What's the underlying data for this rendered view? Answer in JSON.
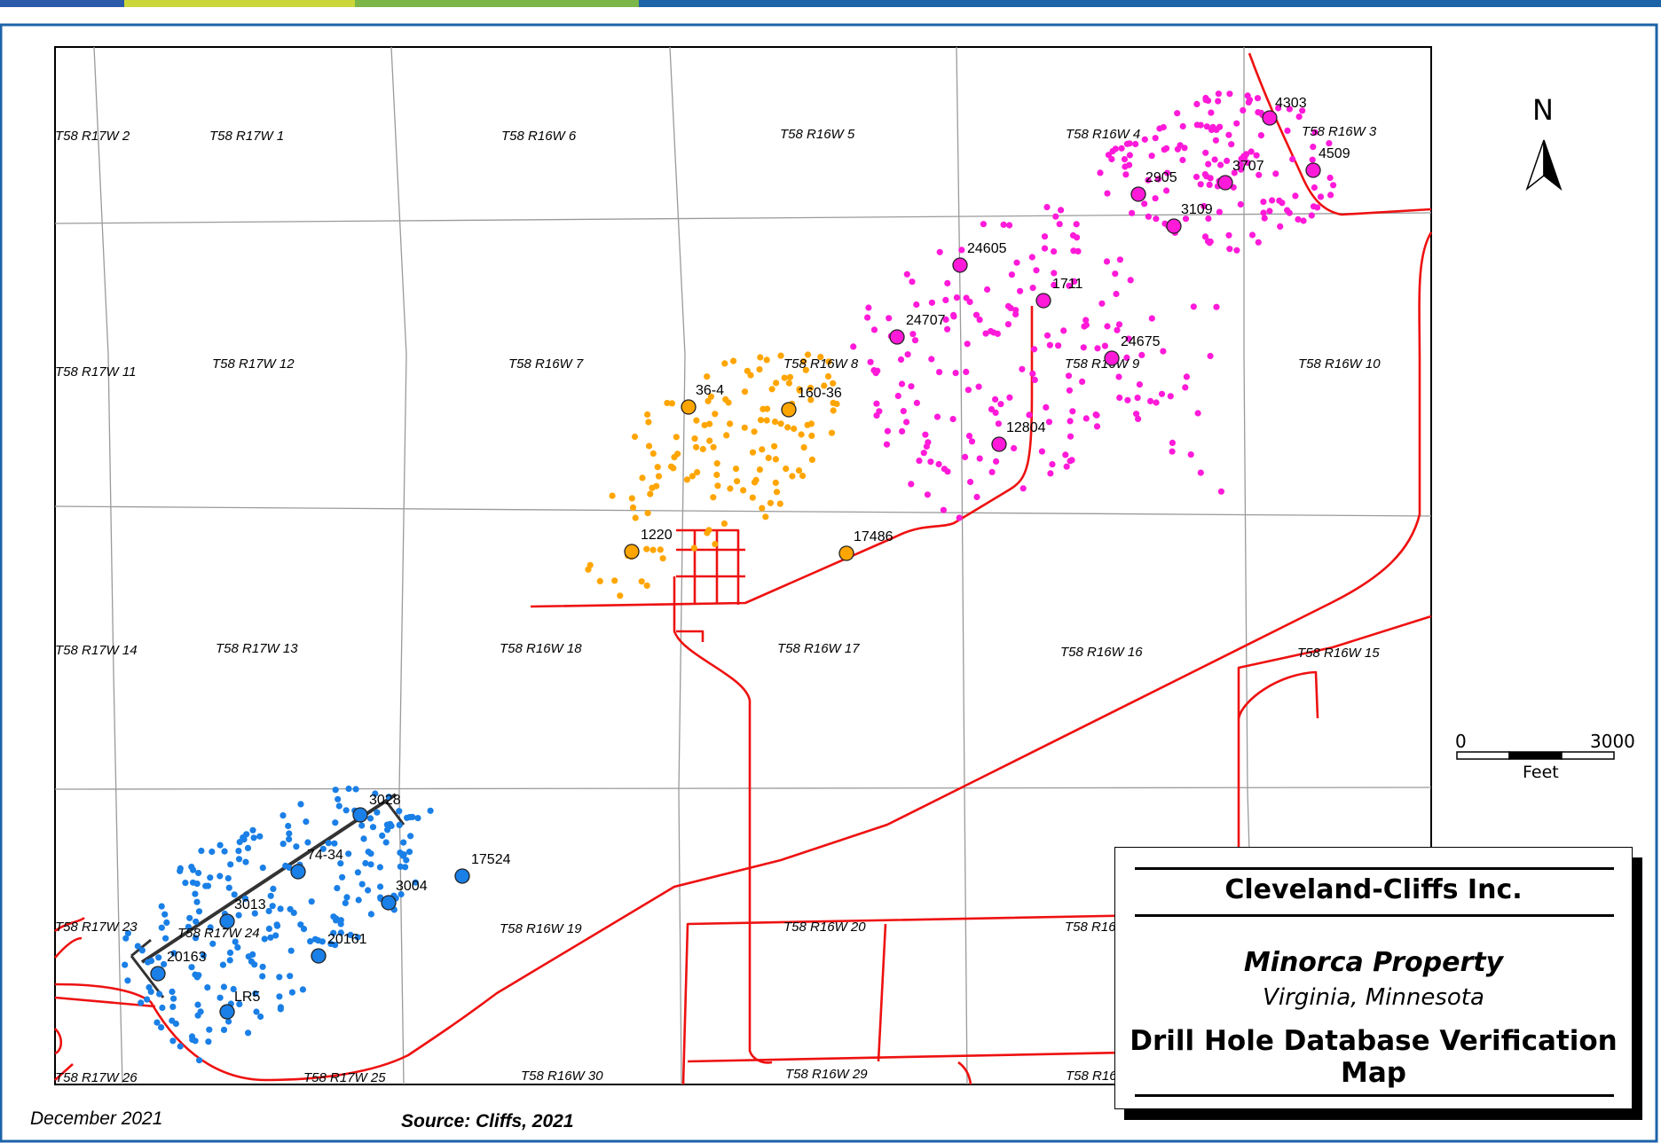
{
  "map": {
    "sections": [
      {
        "label": "T58 R17W  2"
      },
      {
        "label": "T58 R17W  1"
      },
      {
        "label": "T58 R16W  6"
      },
      {
        "label": "T58 R16W  5"
      },
      {
        "label": "T58 R16W  4"
      },
      {
        "label": "T58 R16W  3"
      },
      {
        "label": "T58 R17W  11"
      },
      {
        "label": "T58 R17W  12"
      },
      {
        "label": "T58 R16W  7"
      },
      {
        "label": "T58 R16W  8"
      },
      {
        "label": "T58 R16W  9"
      },
      {
        "label": "T58 R16W  10"
      },
      {
        "label": "T58 R17W  14"
      },
      {
        "label": "T58 R17W  13"
      },
      {
        "label": "T58 R16W  18"
      },
      {
        "label": "T58 R16W  17"
      },
      {
        "label": "T58 R16W  16"
      },
      {
        "label": "T58 R16W  15"
      },
      {
        "label": "T58 R17W  23"
      },
      {
        "label": "T58 R17W  24"
      },
      {
        "label": "T58 R16W  19"
      },
      {
        "label": "T58 R16W  20"
      },
      {
        "label": "T58 R16"
      },
      {
        "label": "T58 R17W  26"
      },
      {
        "label": "T58 R17W  25"
      },
      {
        "label": "T58 R16W  30"
      },
      {
        "label": "T58 R16W  29"
      },
      {
        "label": "T58 R16"
      }
    ],
    "verified_holes": [
      {
        "id": "4303",
        "group": "magenta"
      },
      {
        "id": "4509",
        "group": "magenta"
      },
      {
        "id": "3707",
        "group": "magenta"
      },
      {
        "id": "2905",
        "group": "magenta"
      },
      {
        "id": "3109",
        "group": "magenta"
      },
      {
        "id": "24605",
        "group": "magenta"
      },
      {
        "id": "1711",
        "group": "magenta"
      },
      {
        "id": "24707",
        "group": "magenta"
      },
      {
        "id": "24675",
        "group": "magenta"
      },
      {
        "id": "12804",
        "group": "magenta"
      },
      {
        "id": "36-4",
        "group": "orange"
      },
      {
        "id": "160-36",
        "group": "orange"
      },
      {
        "id": "1220",
        "group": "orange"
      },
      {
        "id": "17486",
        "group": "orange"
      },
      {
        "id": "3028",
        "group": "blue"
      },
      {
        "id": "74-34",
        "group": "blue"
      },
      {
        "id": "17524",
        "group": "blue"
      },
      {
        "id": "3004",
        "group": "blue"
      },
      {
        "id": "3013",
        "group": "blue"
      },
      {
        "id": "20161",
        "group": "blue"
      },
      {
        "id": "20163",
        "group": "blue"
      },
      {
        "id": "LR5",
        "group": "blue"
      }
    ],
    "colors": {
      "magenta": "#ff1ad9",
      "orange": "#ffa500",
      "blue": "#1a7fe6",
      "road": "#ee1111",
      "grid": "#9a9a9a"
    }
  },
  "north_arrow": {
    "letter": "N"
  },
  "scale_bar": {
    "min": "0",
    "max": "3000",
    "unit": "Feet"
  },
  "title_block": {
    "company": "Cleveland-Cliffs Inc.",
    "property": "Minorca Property",
    "location": "Virginia, Minnesota",
    "map_title": "Drill Hole Database Verification Map"
  },
  "footer": {
    "date": "December 2021",
    "source": "Source: Cliffs, 2021"
  }
}
